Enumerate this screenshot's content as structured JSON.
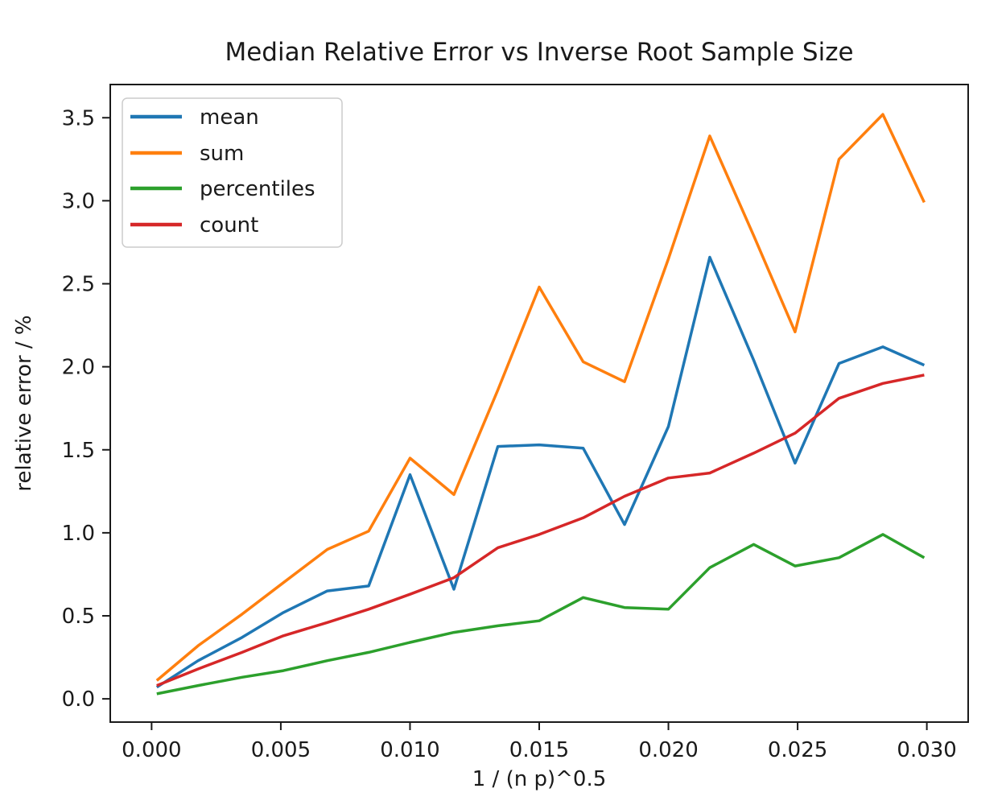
{
  "figure": {
    "background": "#ffffff",
    "text_color": "#1a1a1a"
  },
  "chart_data": {
    "type": "line",
    "title": "Median Relative Error vs Inverse Root Sample Size",
    "xlabel": "1 / (n p)^0.5",
    "ylabel": "relative error / %",
    "grid": false,
    "legend_position": "upper left",
    "xlim": [
      -0.0016,
      0.0316
    ],
    "ylim": [
      -0.14,
      3.7
    ],
    "x_ticks": {
      "values": [
        0.0,
        0.005,
        0.01,
        0.015,
        0.02,
        0.025,
        0.03
      ],
      "labels": [
        "0.000",
        "0.005",
        "0.010",
        "0.015",
        "0.020",
        "0.025",
        "0.030"
      ]
    },
    "y_ticks": {
      "values": [
        0.0,
        0.5,
        1.0,
        1.5,
        2.0,
        2.5,
        3.0,
        3.5
      ],
      "labels": [
        "0.0",
        "0.5",
        "1.0",
        "1.5",
        "2.0",
        "2.5",
        "3.0",
        "3.5"
      ]
    },
    "x": [
      0.0002,
      0.0018,
      0.0035,
      0.0051,
      0.0068,
      0.0084,
      0.01,
      0.0117,
      0.0134,
      0.015,
      0.0167,
      0.0183,
      0.02,
      0.0216,
      0.0233,
      0.0249,
      0.0266,
      0.0283,
      0.0299
    ],
    "series": [
      {
        "name": "mean",
        "color": "#1f77b4",
        "values": [
          0.07,
          0.23,
          0.37,
          0.52,
          0.65,
          0.68,
          1.35,
          0.66,
          1.52,
          1.53,
          1.51,
          1.05,
          1.64,
          2.66,
          2.04,
          1.42,
          2.02,
          2.12,
          2.01
        ]
      },
      {
        "name": "sum",
        "color": "#ff7f0e",
        "values": [
          0.11,
          0.32,
          0.51,
          0.7,
          0.9,
          1.01,
          1.45,
          1.23,
          1.86,
          2.48,
          2.03,
          1.91,
          2.65,
          3.39,
          2.79,
          2.21,
          3.25,
          3.52,
          2.99
        ]
      },
      {
        "name": "percentiles",
        "color": "#2ca02c",
        "values": [
          0.03,
          0.08,
          0.13,
          0.17,
          0.23,
          0.28,
          0.34,
          0.4,
          0.44,
          0.47,
          0.61,
          0.55,
          0.54,
          0.79,
          0.93,
          0.8,
          0.85,
          0.99,
          0.85
        ]
      },
      {
        "name": "count",
        "color": "#d62728",
        "values": [
          0.08,
          0.18,
          0.28,
          0.38,
          0.46,
          0.54,
          0.63,
          0.73,
          0.91,
          0.99,
          1.09,
          1.22,
          1.33,
          1.36,
          1.48,
          1.6,
          1.81,
          1.9,
          1.95
        ]
      }
    ]
  }
}
